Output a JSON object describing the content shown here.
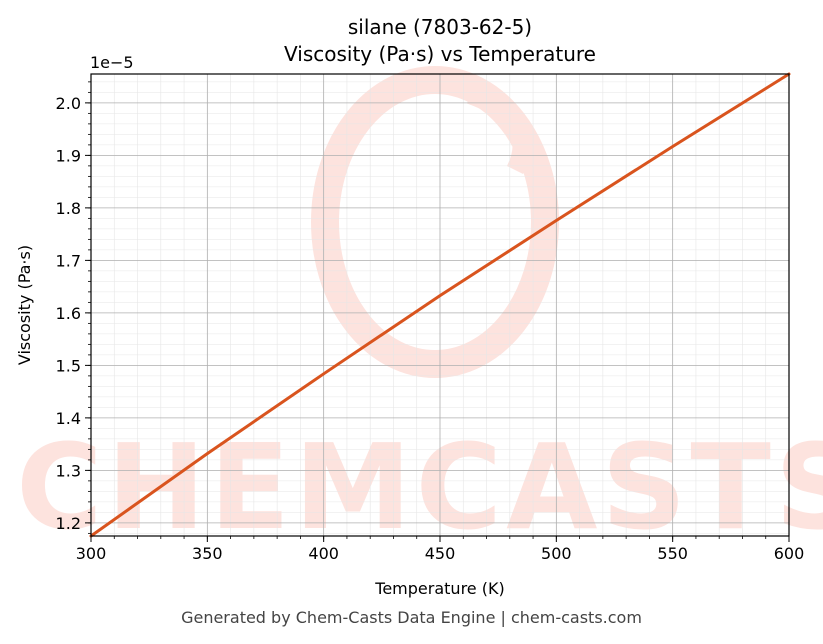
{
  "chart_data": {
    "type": "line",
    "title": "silane (7803-62-5)",
    "subtitle": "Viscosity (Pa·s) vs Temperature",
    "xlabel": "Temperature (K)",
    "ylabel": "Viscosity (Pa·s)",
    "y_offset_label": "1e−5",
    "xlim": [
      300,
      600
    ],
    "ylim": [
      1.175,
      2.055
    ],
    "x_ticks": [
      300,
      350,
      400,
      450,
      500,
      550,
      600
    ],
    "x_tick_labels": [
      "300",
      "350",
      "400",
      "450",
      "500",
      "550",
      "600"
    ],
    "y_ticks": [
      1.2,
      1.3,
      1.4,
      1.5,
      1.6,
      1.7,
      1.8,
      1.9,
      2.0
    ],
    "y_tick_labels": [
      "1.2",
      "1.3",
      "1.4",
      "1.5",
      "1.6",
      "1.7",
      "1.8",
      "1.9",
      "2.0"
    ],
    "grid": true,
    "legend": "none",
    "series": [
      {
        "color": "#d9541e",
        "x": [
          300,
          350,
          400,
          450,
          500,
          550,
          600
        ],
        "y": [
          1.175,
          1.332,
          1.484,
          1.633,
          1.776,
          1.917,
          2.055
        ]
      }
    ]
  },
  "watermark_text": "CHEMCASTS",
  "footer": "Generated by Chem-Casts Data Engine | chem-casts.com",
  "colors": {
    "line": "#d9541e",
    "watermark": "#fde3de",
    "grid_major": "#b0b0b0",
    "grid_minor": "#e6e6e6"
  }
}
